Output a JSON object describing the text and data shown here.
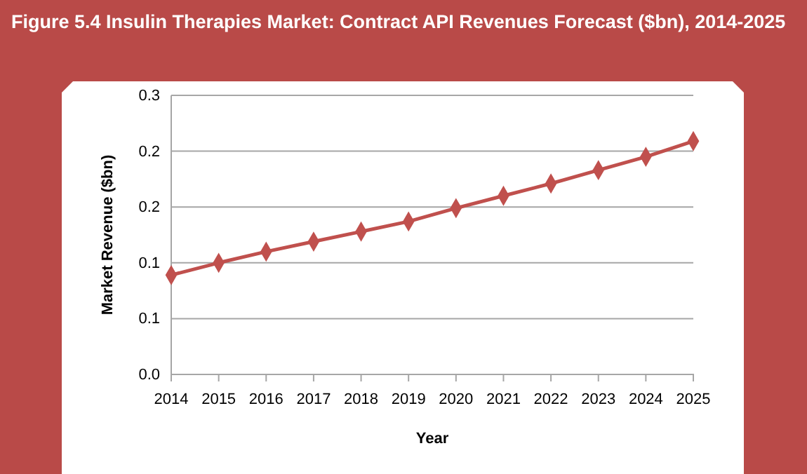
{
  "chart_data": {
    "type": "line",
    "title": "Figure 5.4 Insulin Therapies Market: Contract API Revenues Forecast ($bn), 2014-2025",
    "xlabel": "Year",
    "ylabel": "Market Revenue ($bn)",
    "categories": [
      "2014",
      "2015",
      "2016",
      "2017",
      "2018",
      "2019",
      "2020",
      "2021",
      "2022",
      "2023",
      "2024",
      "2025"
    ],
    "series": [
      {
        "color": "#c0504d",
        "values": [
          0.089,
          0.1,
          0.11,
          0.119,
          0.128,
          0.137,
          0.149,
          0.16,
          0.171,
          0.183,
          0.195,
          0.209
        ]
      }
    ],
    "ylim": [
      0,
      0.25
    ],
    "yticks": [
      {
        "value": 0,
        "label": "0.0"
      },
      {
        "value": 0.05,
        "label": "0.1"
      },
      {
        "value": 0.1,
        "label": "0.1"
      },
      {
        "value": 0.15,
        "label": "0.2"
      },
      {
        "value": 0.2,
        "label": "0.2"
      },
      {
        "value": 0.25,
        "label": "0.3"
      }
    ],
    "grid": "y",
    "marker": "diamond",
    "line_style": "solid"
  }
}
